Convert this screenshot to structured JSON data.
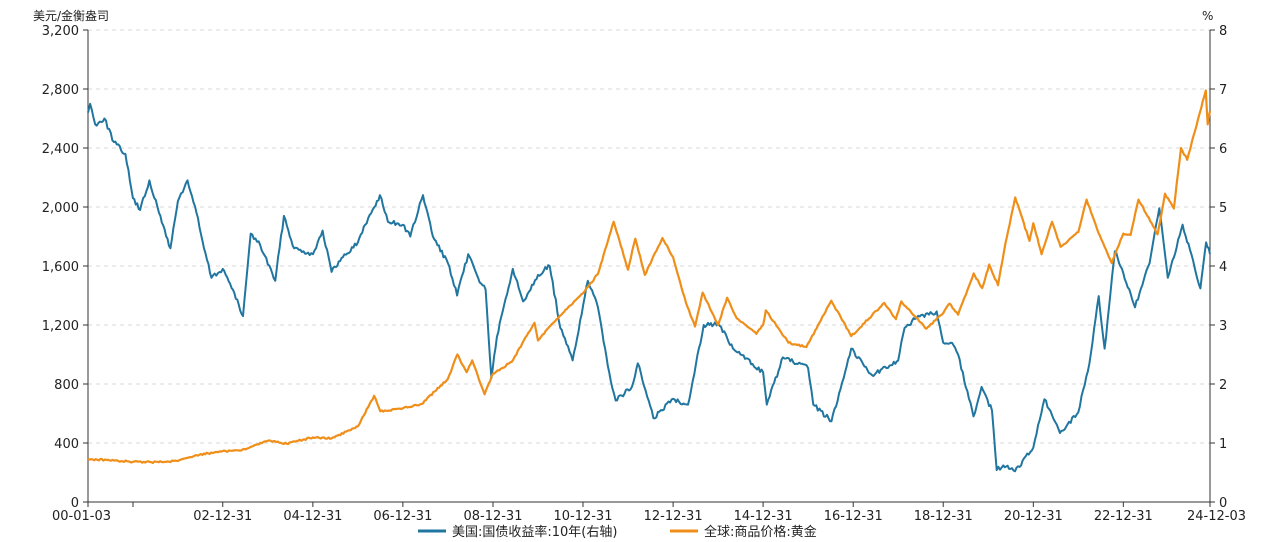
{
  "chart_data": {
    "type": "line",
    "left_axis_unit": "美元/金衡盎司",
    "right_axis_unit": "%",
    "left_ylim": [
      0,
      3200
    ],
    "right_ylim": [
      0,
      8
    ],
    "left_ticks": [
      "0",
      "400",
      "800",
      "1,200",
      "1,600",
      "2,000",
      "2,400",
      "2,800",
      "3,200"
    ],
    "right_ticks": [
      "0",
      "1",
      "2",
      "3",
      "4",
      "5",
      "6",
      "7",
      "8"
    ],
    "x_range": [
      "2000-01-03",
      "2024-12-03"
    ],
    "x_ticks": [
      {
        "date": "2000-01-03",
        "label": "00-01-03"
      },
      {
        "date": "2002-12-31",
        "label": "02-12-31"
      },
      {
        "date": "2004-12-31",
        "label": "04-12-31"
      },
      {
        "date": "2006-12-31",
        "label": "06-12-31"
      },
      {
        "date": "2008-12-31",
        "label": "08-12-31"
      },
      {
        "date": "2010-12-31",
        "label": "10-12-31"
      },
      {
        "date": "2012-12-31",
        "label": "12-12-31"
      },
      {
        "date": "2014-12-31",
        "label": "14-12-31"
      },
      {
        "date": "2016-12-31",
        "label": "16-12-31"
      },
      {
        "date": "2018-12-31",
        "label": "18-12-31"
      },
      {
        "date": "2020-12-31",
        "label": "20-12-31"
      },
      {
        "date": "2022-12-31",
        "label": "22-12-31"
      },
      {
        "date": "2024-12-03",
        "label": "24-12-03"
      }
    ],
    "grid": "horizontal dashed",
    "legend_position": "bottom-center",
    "series": [
      {
        "name": "美国:国债收益率:10年(右轴)",
        "axis": "right",
        "color": "#2176a0",
        "points": [
          [
            "2000-01-03",
            6.6
          ],
          [
            "2000-01-20",
            6.75
          ],
          [
            "2000-03-01",
            6.4
          ],
          [
            "2000-05-15",
            6.5
          ],
          [
            "2000-08-01",
            6.1
          ],
          [
            "2000-11-01",
            5.9
          ],
          [
            "2001-01-01",
            5.15
          ],
          [
            "2001-03-01",
            4.95
          ],
          [
            "2001-05-15",
            5.45
          ],
          [
            "2001-08-01",
            4.9
          ],
          [
            "2001-11-01",
            4.3
          ],
          [
            "2002-01-01",
            5.1
          ],
          [
            "2002-03-20",
            5.45
          ],
          [
            "2002-06-01",
            4.9
          ],
          [
            "2002-08-01",
            4.3
          ],
          [
            "2002-10-01",
            3.8
          ],
          [
            "2002-12-31",
            3.95
          ],
          [
            "2003-03-01",
            3.7
          ],
          [
            "2003-06-13",
            3.15
          ],
          [
            "2003-08-15",
            4.55
          ],
          [
            "2003-11-01",
            4.35
          ],
          [
            "2004-03-01",
            3.75
          ],
          [
            "2004-05-10",
            4.85
          ],
          [
            "2004-08-01",
            4.3
          ],
          [
            "2004-12-31",
            4.2
          ],
          [
            "2005-03-20",
            4.6
          ],
          [
            "2005-06-01",
            3.9
          ],
          [
            "2005-09-01",
            4.15
          ],
          [
            "2005-12-31",
            4.4
          ],
          [
            "2006-03-01",
            4.7
          ],
          [
            "2006-06-28",
            5.2
          ],
          [
            "2006-09-01",
            4.75
          ],
          [
            "2006-12-31",
            4.7
          ],
          [
            "2007-03-01",
            4.5
          ],
          [
            "2007-06-12",
            5.2
          ],
          [
            "2007-09-01",
            4.5
          ],
          [
            "2007-12-31",
            4.05
          ],
          [
            "2008-03-15",
            3.5
          ],
          [
            "2008-06-13",
            4.2
          ],
          [
            "2008-09-01",
            3.8
          ],
          [
            "2008-11-01",
            3.6
          ],
          [
            "2008-12-18",
            2.1
          ],
          [
            "2009-02-01",
            2.8
          ],
          [
            "2009-06-10",
            3.95
          ],
          [
            "2009-09-01",
            3.4
          ],
          [
            "2009-12-31",
            3.85
          ],
          [
            "2010-04-05",
            4.0
          ],
          [
            "2010-06-30",
            2.95
          ],
          [
            "2010-10-08",
            2.4
          ],
          [
            "2011-02-08",
            3.75
          ],
          [
            "2011-05-01",
            3.3
          ],
          [
            "2011-08-01",
            2.2
          ],
          [
            "2011-09-22",
            1.72
          ],
          [
            "2012-02-01",
            1.95
          ],
          [
            "2012-03-20",
            2.35
          ],
          [
            "2012-07-24",
            1.42
          ],
          [
            "2012-12-31",
            1.75
          ],
          [
            "2013-05-01",
            1.65
          ],
          [
            "2013-09-05",
            3.0
          ],
          [
            "2013-12-31",
            3.03
          ],
          [
            "2014-05-01",
            2.6
          ],
          [
            "2014-12-31",
            2.2
          ],
          [
            "2015-01-30",
            1.65
          ],
          [
            "2015-06-10",
            2.45
          ],
          [
            "2015-12-31",
            2.27
          ],
          [
            "2016-02-11",
            1.65
          ],
          [
            "2016-07-08",
            1.37
          ],
          [
            "2016-12-15",
            2.6
          ],
          [
            "2017-06-01",
            2.15
          ],
          [
            "2017-12-31",
            2.4
          ],
          [
            "2018-02-21",
            2.95
          ],
          [
            "2018-05-17",
            3.1
          ],
          [
            "2018-11-08",
            3.23
          ],
          [
            "2018-12-31",
            2.7
          ],
          [
            "2019-03-01",
            2.7
          ],
          [
            "2019-05-01",
            2.5
          ],
          [
            "2019-09-03",
            1.45
          ],
          [
            "2019-11-07",
            1.95
          ],
          [
            "2020-01-31",
            1.55
          ],
          [
            "2020-03-09",
            0.54
          ],
          [
            "2020-05-01",
            0.62
          ],
          [
            "2020-08-04",
            0.52
          ],
          [
            "2020-12-31",
            0.92
          ],
          [
            "2021-03-31",
            1.74
          ],
          [
            "2021-08-04",
            1.17
          ],
          [
            "2021-12-31",
            1.52
          ],
          [
            "2022-03-31",
            2.35
          ],
          [
            "2022-06-14",
            3.49
          ],
          [
            "2022-08-01",
            2.6
          ],
          [
            "2022-10-24",
            4.25
          ],
          [
            "2022-12-31",
            3.88
          ],
          [
            "2023-04-05",
            3.3
          ],
          [
            "2023-08-01",
            4.05
          ],
          [
            "2023-10-19",
            4.98
          ],
          [
            "2023-12-27",
            3.8
          ],
          [
            "2024-04-25",
            4.7
          ],
          [
            "2024-09-16",
            3.62
          ],
          [
            "2024-11-01",
            4.4
          ],
          [
            "2024-12-03",
            4.2
          ]
        ]
      },
      {
        "name": "全球:商品价格:黄金",
        "axis": "left",
        "color": "#ef8f1a",
        "points": [
          [
            "2000-01-03",
            290
          ],
          [
            "2000-06-01",
            285
          ],
          [
            "2000-12-31",
            272
          ],
          [
            "2001-06-01",
            270
          ],
          [
            "2001-12-31",
            278
          ],
          [
            "2002-06-01",
            318
          ],
          [
            "2002-12-31",
            345
          ],
          [
            "2003-06-01",
            350
          ],
          [
            "2003-12-31",
            415
          ],
          [
            "2004-06-01",
            395
          ],
          [
            "2004-12-31",
            438
          ],
          [
            "2005-06-01",
            432
          ],
          [
            "2005-12-31",
            513
          ],
          [
            "2006-05-12",
            720
          ],
          [
            "2006-07-01",
            615
          ],
          [
            "2006-12-31",
            635
          ],
          [
            "2007-06-01",
            665
          ],
          [
            "2007-12-31",
            835
          ],
          [
            "2008-03-17",
            1000
          ],
          [
            "2008-06-01",
            880
          ],
          [
            "2008-07-15",
            960
          ],
          [
            "2008-10-24",
            730
          ],
          [
            "2008-12-31",
            870
          ],
          [
            "2009-06-01",
            950
          ],
          [
            "2009-12-03",
            1215
          ],
          [
            "2009-12-31",
            1095
          ],
          [
            "2010-06-01",
            1240
          ],
          [
            "2010-12-31",
            1415
          ],
          [
            "2011-05-01",
            1545
          ],
          [
            "2011-09-06",
            1900
          ],
          [
            "2011-12-31",
            1575
          ],
          [
            "2012-02-28",
            1785
          ],
          [
            "2012-05-16",
            1540
          ],
          [
            "2012-10-05",
            1790
          ],
          [
            "2012-12-31",
            1660
          ],
          [
            "2013-04-15",
            1350
          ],
          [
            "2013-06-27",
            1190
          ],
          [
            "2013-08-27",
            1420
          ],
          [
            "2013-12-31",
            1200
          ],
          [
            "2014-03-14",
            1385
          ],
          [
            "2014-06-01",
            1245
          ],
          [
            "2014-11-06",
            1140
          ],
          [
            "2014-12-31",
            1200
          ],
          [
            "2015-01-22",
            1300
          ],
          [
            "2015-07-24",
            1080
          ],
          [
            "2015-12-17",
            1050
          ],
          [
            "2016-07-06",
            1365
          ],
          [
            "2016-12-15",
            1125
          ],
          [
            "2017-06-01",
            1265
          ],
          [
            "2017-09-08",
            1350
          ],
          [
            "2017-12-12",
            1240
          ],
          [
            "2018-01-25",
            1360
          ],
          [
            "2018-08-16",
            1175
          ],
          [
            "2018-12-31",
            1280
          ],
          [
            "2019-02-20",
            1345
          ],
          [
            "2019-05-01",
            1270
          ],
          [
            "2019-09-04",
            1550
          ],
          [
            "2019-11-12",
            1450
          ],
          [
            "2020-01-08",
            1610
          ],
          [
            "2020-03-19",
            1470
          ],
          [
            "2020-05-18",
            1750
          ],
          [
            "2020-08-06",
            2065
          ],
          [
            "2020-11-30",
            1770
          ],
          [
            "2020-12-31",
            1890
          ],
          [
            "2021-03-08",
            1680
          ],
          [
            "2021-06-01",
            1900
          ],
          [
            "2021-08-09",
            1730
          ],
          [
            "2021-12-31",
            1830
          ],
          [
            "2022-03-08",
            2050
          ],
          [
            "2022-06-01",
            1850
          ],
          [
            "2022-09-28",
            1620
          ],
          [
            "2022-12-31",
            1820
          ],
          [
            "2023-02-28",
            1810
          ],
          [
            "2023-05-03",
            2050
          ],
          [
            "2023-10-05",
            1815
          ],
          [
            "2023-12-04",
            2090
          ],
          [
            "2024-02-14",
            1990
          ],
          [
            "2024-04-12",
            2400
          ],
          [
            "2024-06-01",
            2320
          ],
          [
            "2024-10-30",
            2790
          ],
          [
            "2024-11-14",
            2560
          ],
          [
            "2024-12-03",
            2650
          ]
        ]
      }
    ]
  }
}
